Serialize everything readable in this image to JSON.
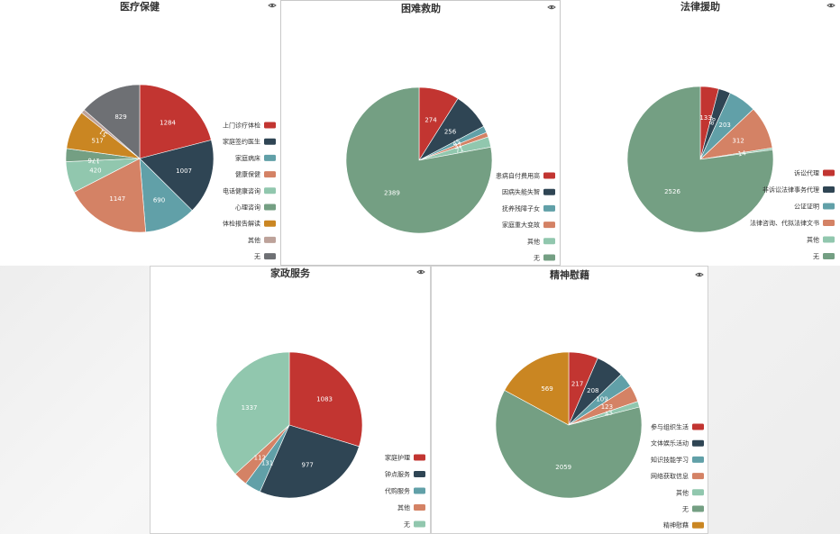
{
  "icons": {
    "view": "eye-icon"
  },
  "chart_data": [
    {
      "type": "pie",
      "title": "医疗保健",
      "categories": [
        "上门诊疗体检",
        "家庭签约医生",
        "家庭病床",
        "健康保健",
        "电话健康咨询",
        "心理咨询",
        "体检报告解读",
        "其他",
        "无"
      ],
      "values": [
        1284,
        1007,
        690,
        1147,
        420,
        176,
        517,
        51,
        829
      ],
      "colors": [
        "#c23531",
        "#2f4554",
        "#61a0a8",
        "#d48265",
        "#91c7ae",
        "#749f83",
        "#ca8622",
        "#bda29a",
        "#6e7074"
      ],
      "show_labels": [
        true,
        true,
        true,
        true,
        true,
        true,
        true,
        true,
        true
      ],
      "legend_position": "right"
    },
    {
      "type": "pie",
      "title": "困难救助",
      "categories": [
        "患病自付费用高",
        "因病失能失智",
        "抚养残障子女",
        "家庭重大变故",
        "其他",
        "无"
      ],
      "values": [
        274,
        256,
        45,
        32,
        71,
        2389
      ],
      "colors": [
        "#c23531",
        "#2f4554",
        "#61a0a8",
        "#d48265",
        "#91c7ae",
        "#749f83"
      ],
      "show_labels": [
        true,
        true,
        true,
        true,
        true,
        true
      ],
      "legend_position": "right"
    },
    {
      "type": "pie",
      "title": "法律援助",
      "categories": [
        "诉讼代理",
        "非诉讼法律事务代理",
        "公证证明",
        "法律咨询、代拟法律文书",
        "其他",
        "无"
      ],
      "values": [
        133,
        88,
        203,
        312,
        14,
        2526
      ],
      "colors": [
        "#c23531",
        "#2f4554",
        "#61a0a8",
        "#d48265",
        "#91c7ae",
        "#749f83"
      ],
      "show_labels": [
        true,
        true,
        true,
        true,
        true,
        true
      ],
      "legend_position": "right"
    },
    {
      "type": "pie",
      "title": "家政服务",
      "categories": [
        "家庭护理",
        "钟点服务",
        "代购服务",
        "其他",
        "无"
      ],
      "values": [
        1083,
        977,
        131,
        112,
        1337
      ],
      "colors": [
        "#c23531",
        "#2f4554",
        "#61a0a8",
        "#d48265",
        "#91c7ae"
      ],
      "show_labels": [
        true,
        true,
        true,
        true,
        true
      ],
      "legend_position": "right"
    },
    {
      "type": "pie",
      "title": "精神慰藉",
      "categories": [
        "参与组织生活",
        "文体娱乐活动",
        "知识技能学习",
        "网络获取信息",
        "其他",
        "无",
        "精神慰藉"
      ],
      "values": [
        217,
        208,
        109,
        123,
        43,
        2059,
        569
      ],
      "colors": [
        "#c23531",
        "#2f4554",
        "#61a0a8",
        "#d48265",
        "#91c7ae",
        "#749f83",
        "#ca8622"
      ],
      "show_labels": [
        true,
        true,
        true,
        true,
        true,
        true,
        true
      ],
      "legend_position": "right"
    }
  ]
}
